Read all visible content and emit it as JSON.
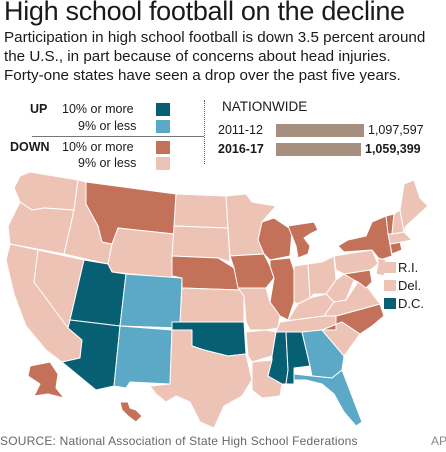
{
  "title": "High school football on the decline",
  "subtitle_lines": [
    "Participation in high school football is down 3.5 percent around",
    "the U.S., in part because of concerns about head injuries.",
    "Forty-one states have seen a drop over the past five years."
  ],
  "colors": {
    "up_10_or_more": "#075f74",
    "up_9_or_less": "#5ba9c6",
    "down_10_or_more": "#c4715a",
    "down_9_or_less": "#edc3b6",
    "border": "#ffffff",
    "bar": "#a78f80"
  },
  "legend": {
    "up_label": "UP",
    "down_label": "DOWN",
    "up_high": "10% or more",
    "up_low": "9% or less",
    "down_high": "10% or more",
    "down_low": "9% or less"
  },
  "nationwide": {
    "heading": "NATIONWIDE",
    "rows": [
      {
        "year": "2011-12",
        "value_label": "1,097,597",
        "value": 1097597,
        "bold": false
      },
      {
        "year": "2016-17",
        "value_label": "1,059,399",
        "value": 1059399,
        "bold": true
      }
    ]
  },
  "small_states": [
    {
      "label": "R.I.",
      "category": "down_9_or_less"
    },
    {
      "label": "Del.",
      "category": "down_9_or_less"
    },
    {
      "label": "D.C.",
      "category": "up_10_or_more"
    }
  ],
  "states": {
    "WA": "down_9_or_less",
    "OR": "down_9_or_less",
    "CA": "down_9_or_less",
    "NV": "down_9_or_less",
    "ID": "down_9_or_less",
    "MT": "down_10_or_more",
    "WY": "down_9_or_less",
    "UT": "up_10_or_more",
    "AZ": "up_10_or_more",
    "CO": "up_9_or_less",
    "NM": "up_9_or_less",
    "ND": "down_9_or_less",
    "SD": "down_9_or_less",
    "NE": "down_10_or_more",
    "KS": "down_9_or_less",
    "OK": "up_10_or_more",
    "TX": "down_9_or_less",
    "MN": "down_9_or_less",
    "IA": "down_10_or_more",
    "MO": "down_9_or_less",
    "AR": "down_9_or_less",
    "LA": "down_9_or_less",
    "WI": "down_10_or_more",
    "IL": "down_10_or_more",
    "MI": "down_10_or_more",
    "IN": "down_9_or_less",
    "OH": "down_9_or_less",
    "KY": "down_9_or_less",
    "TN": "down_9_or_less",
    "MS": "up_10_or_more",
    "AL": "up_10_or_more",
    "GA": "up_9_or_less",
    "FL": "up_9_or_less",
    "SC": "down_9_or_less",
    "NC": "down_10_or_more",
    "VA": "down_9_or_less",
    "WV": "down_9_or_less",
    "MD": "down_10_or_more",
    "PA": "down_9_or_less",
    "NY": "down_10_or_more",
    "NJ": "down_9_or_less",
    "CT": "down_10_or_more",
    "MA": "down_9_or_less",
    "VT": "down_10_or_more",
    "NH": "down_9_or_less",
    "ME": "down_9_or_less",
    "AK": "down_10_or_more",
    "HI": "down_10_or_more"
  },
  "source": "SOURCE: National Association of State High School Federations",
  "credit": "AP"
}
